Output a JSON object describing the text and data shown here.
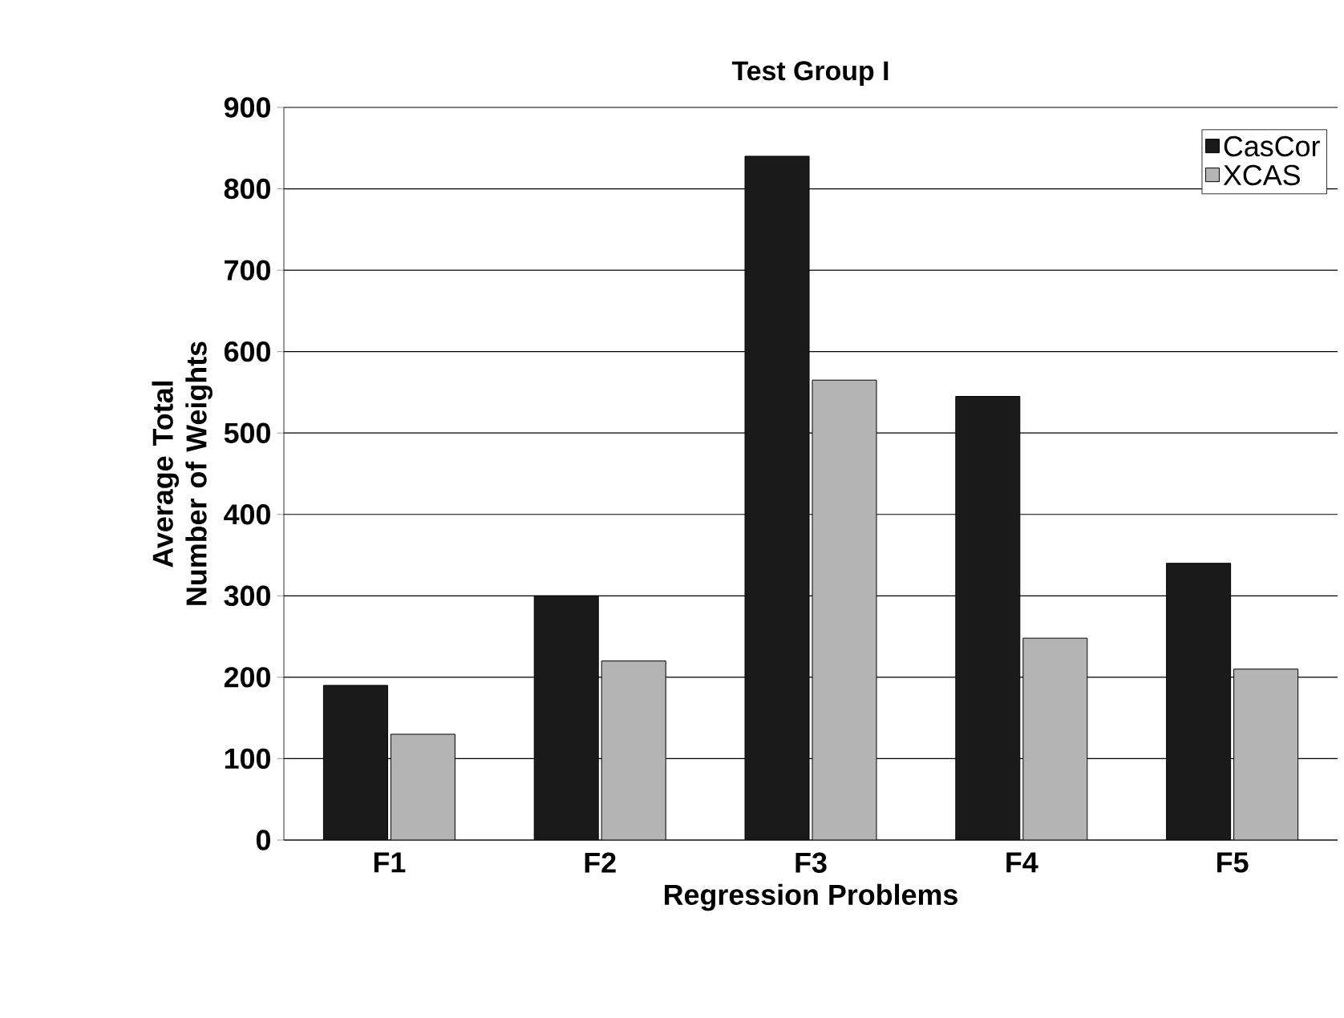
{
  "chart_data": {
    "type": "bar",
    "title": "Test Group I",
    "xlabel": "Regression Problems",
    "ylabel": "Average Total Number of Weights",
    "categories": [
      "F1",
      "F2",
      "F3",
      "F4",
      "F5"
    ],
    "series": [
      {
        "name": "CasCor",
        "color": "#1a1a1a",
        "values": [
          190,
          300,
          840,
          545,
          340
        ]
      },
      {
        "name": "XCAS",
        "color": "#b4b4b4",
        "values": [
          130,
          220,
          565,
          248,
          210
        ]
      }
    ],
    "ylim": [
      0,
      900
    ],
    "yticks": [
      0,
      100,
      200,
      300,
      400,
      500,
      600,
      700,
      800,
      900
    ],
    "grid": "y",
    "legend": "top right"
  }
}
